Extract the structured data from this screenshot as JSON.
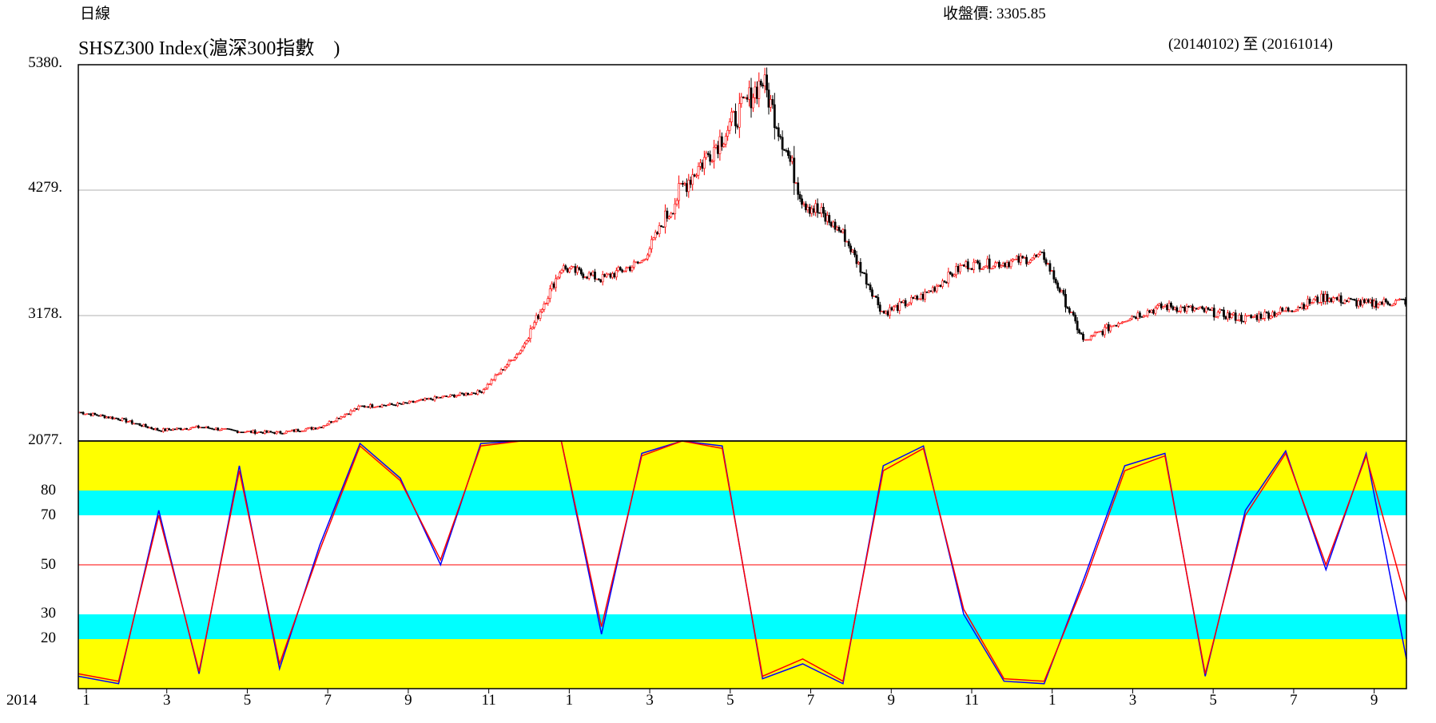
{
  "header": {
    "period": "日線",
    "close_label": "收盤價: 3305.85",
    "title": "SHSZ300 Index(滬深300指數　)",
    "date_range": "(20140102) 至 (20161014)"
  },
  "colors": {
    "up_candle": "#ff0000",
    "down_candle": "#000000",
    "band_yellow": "#ffff00",
    "band_cyan": "#00ffff",
    "k_line": "#0000ff",
    "d_line": "#ff0000",
    "midline": "#ff0000",
    "gridline": "#b0b0b0"
  },
  "chart_data": [
    {
      "type": "line",
      "subtype": "candlestick",
      "title": "SHSZ300 Index(滬深300指數　)",
      "ylim": [
        2077,
        5380
      ],
      "y_ticks": [
        "5380.",
        "4279.",
        "3178.",
        "2077."
      ],
      "grid": "horizontal",
      "x_start_year": "2014",
      "x_ticks": [
        "1",
        "3",
        "5",
        "7",
        "9",
        "11",
        "1",
        "3",
        "5",
        "7",
        "9",
        "11",
        "1",
        "3",
        "5",
        "7",
        "9"
      ],
      "x": [
        "2014-01",
        "2014-02",
        "2014-03",
        "2014-04",
        "2014-05",
        "2014-06",
        "2014-07",
        "2014-08",
        "2014-09",
        "2014-10",
        "2014-11",
        "2014-12",
        "2015-01",
        "2015-02",
        "2015-03",
        "2015-04",
        "2015-05",
        "2015-06",
        "2015-07",
        "2015-08",
        "2015-09",
        "2015-10",
        "2015-11",
        "2015-12",
        "2016-01",
        "2016-02",
        "2016-03",
        "2016-04",
        "2016-05",
        "2016-06",
        "2016-07",
        "2016-08",
        "2016-09",
        "2016-10"
      ],
      "series": [
        {
          "values": [
            2330,
            2270,
            2170,
            2200,
            2160,
            2150,
            2200,
            2380,
            2400,
            2460,
            2510,
            2880,
            3600,
            3500,
            3650,
            4300,
            4750,
            5250,
            4200,
            3900,
            3200,
            3350,
            3620,
            3640,
            3700,
            2950,
            3150,
            3260,
            3220,
            3150,
            3220,
            3340,
            3280,
            3306
          ]
        }
      ]
    },
    {
      "type": "line",
      "title": "",
      "ylim": [
        0,
        100
      ],
      "y_ticks": [
        "80",
        "70",
        "50",
        "30",
        "20"
      ],
      "bands": [
        {
          "from": 0,
          "to": 20,
          "color": "yellow"
        },
        {
          "from": 20,
          "to": 30,
          "color": "cyan"
        },
        {
          "from": 70,
          "to": 80,
          "color": "cyan"
        },
        {
          "from": 80,
          "to": 100,
          "color": "yellow"
        }
      ],
      "midline": 50,
      "x": [
        "2014-01",
        "2014-02",
        "2014-03",
        "2014-04",
        "2014-05",
        "2014-06",
        "2014-07",
        "2014-08",
        "2014-09",
        "2014-10",
        "2014-11",
        "2014-12",
        "2015-01",
        "2015-02",
        "2015-03",
        "2015-04",
        "2015-05",
        "2015-06",
        "2015-07",
        "2015-08",
        "2015-09",
        "2015-10",
        "2015-11",
        "2015-12",
        "2016-01",
        "2016-02",
        "2016-03",
        "2016-04",
        "2016-05",
        "2016-06",
        "2016-07",
        "2016-08",
        "2016-09",
        "2016-10"
      ],
      "series": [
        {
          "values": [
            5,
            2,
            72,
            6,
            90,
            8,
            58,
            99,
            85,
            50,
            99,
            100,
            100,
            22,
            95,
            100,
            98,
            4,
            10,
            2,
            90,
            98,
            30,
            3,
            2,
            45,
            90,
            95,
            5,
            72,
            96,
            48,
            95,
            12
          ]
        },
        {
          "values": [
            6,
            3,
            70,
            7,
            88,
            10,
            56,
            98,
            84,
            52,
            98,
            100,
            100,
            25,
            94,
            100,
            97,
            5,
            12,
            3,
            88,
            97,
            32,
            4,
            3,
            43,
            88,
            94,
            6,
            70,
            95,
            50,
            94,
            35
          ]
        }
      ]
    }
  ]
}
